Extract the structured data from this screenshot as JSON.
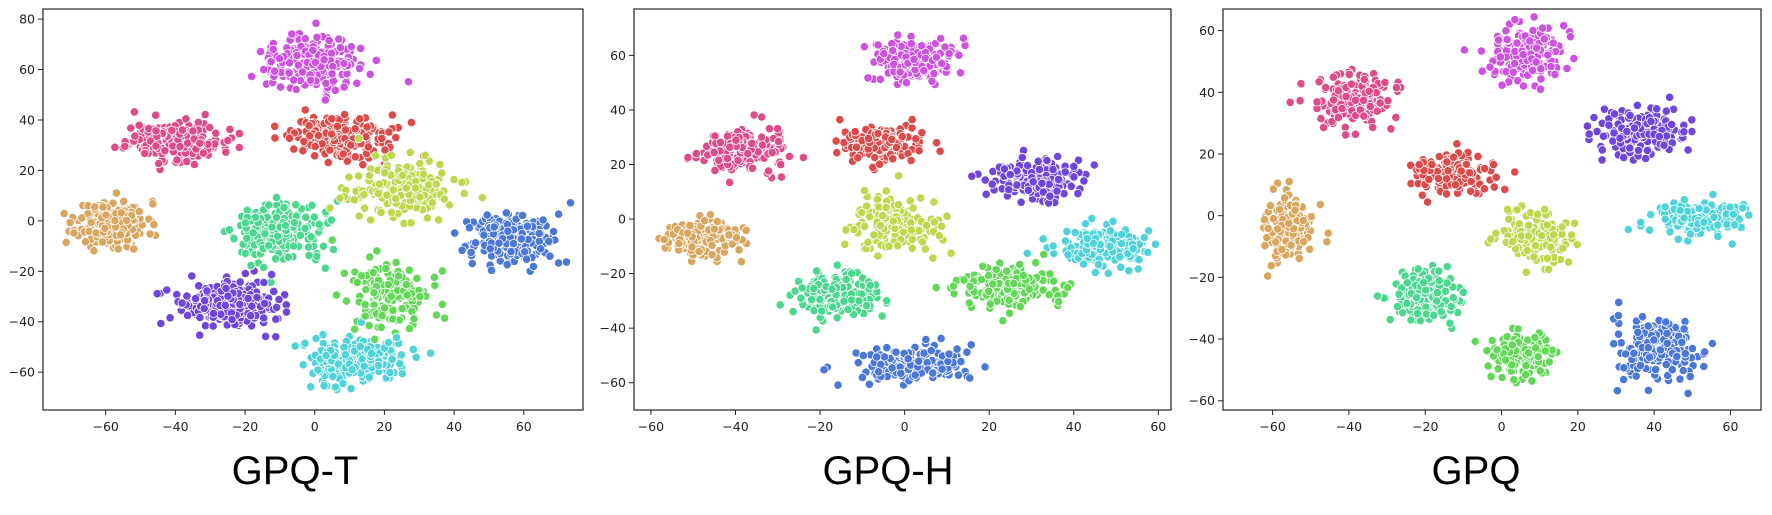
{
  "palette": {
    "orange": "#d8a65e",
    "pink": "#dd4b8b",
    "magenta": "#cc52df",
    "red": "#dc4a4a",
    "yellow": "#bcd84d",
    "mint": "#4cd78f",
    "green": "#63d858",
    "purple": "#7045dc",
    "cyan": "#4fd3d8",
    "blue": "#4b78d8"
  },
  "chart_data": [
    {
      "type": "scatter",
      "caption": "GPQ-T",
      "xlim": [
        -78,
        77
      ],
      "ylim": [
        -75,
        84
      ],
      "xticks": [
        -60,
        -40,
        -20,
        0,
        20,
        40,
        60
      ],
      "yticks": [
        -60,
        -40,
        -20,
        0,
        20,
        40,
        60,
        80
      ],
      "xticklabels": [
        "−60",
        "−40",
        "−20",
        "0",
        "20",
        "40",
        "60"
      ],
      "yticklabels": [
        "−60",
        "−40",
        "−20",
        "0",
        "20",
        "40",
        "60",
        "80"
      ],
      "grid": false,
      "clusters": [
        {
          "color": "orange",
          "center": [
            -58,
            -1
          ],
          "spread": [
            9,
            8
          ],
          "n": 260
        },
        {
          "color": "pink",
          "center": [
            -40,
            32
          ],
          "spread": [
            12,
            7
          ],
          "n": 240
        },
        {
          "color": "magenta",
          "center": [
            -1,
            63
          ],
          "spread": [
            11,
            9
          ],
          "n": 240
        },
        {
          "color": "red",
          "center": [
            8,
            33
          ],
          "spread": [
            14,
            8
          ],
          "n": 200
        },
        {
          "color": "yellow",
          "center": [
            25,
            12
          ],
          "spread": [
            14,
            10
          ],
          "n": 200
        },
        {
          "color": "mint",
          "center": [
            -10,
            -5
          ],
          "spread": [
            11,
            11
          ],
          "n": 220
        },
        {
          "color": "green",
          "center": [
            22,
            -30
          ],
          "spread": [
            10,
            12
          ],
          "n": 180
        },
        {
          "color": "purple",
          "center": [
            -25,
            -33
          ],
          "spread": [
            13,
            8
          ],
          "n": 260
        },
        {
          "color": "cyan",
          "center": [
            12,
            -55
          ],
          "spread": [
            12,
            8
          ],
          "n": 260
        },
        {
          "color": "blue",
          "center": [
            56,
            -7
          ],
          "spread": [
            11,
            9
          ],
          "n": 260
        }
      ]
    },
    {
      "type": "scatter",
      "caption": "GPQ-H",
      "xlim": [
        -64,
        63
      ],
      "ylim": [
        -70,
        77
      ],
      "xticks": [
        -60,
        -40,
        -20,
        0,
        20,
        40,
        60
      ],
      "yticks": [
        -60,
        -40,
        -20,
        0,
        20,
        40,
        60
      ],
      "xticklabels": [
        "−60",
        "−40",
        "−20",
        "0",
        "20",
        "40",
        "60"
      ],
      "yticklabels": [
        "−60",
        "−40",
        "−20",
        "0",
        "20",
        "40",
        "60"
      ],
      "grid": false,
      "clusters": [
        {
          "color": "orange",
          "center": [
            -49,
            -7
          ],
          "spread": [
            8,
            6
          ],
          "n": 180
        },
        {
          "color": "pink",
          "center": [
            -38,
            25
          ],
          "spread": [
            9,
            7
          ],
          "n": 200
        },
        {
          "color": "magenta",
          "center": [
            2,
            58
          ],
          "spread": [
            9,
            7
          ],
          "n": 200
        },
        {
          "color": "red",
          "center": [
            -5,
            28
          ],
          "spread": [
            9,
            6
          ],
          "n": 150
        },
        {
          "color": "yellow",
          "center": [
            -3,
            -2
          ],
          "spread": [
            9,
            8
          ],
          "n": 170
        },
        {
          "color": "mint",
          "center": [
            -16,
            -28
          ],
          "spread": [
            9,
            7
          ],
          "n": 170
        },
        {
          "color": "purple",
          "center": [
            31,
            14
          ],
          "spread": [
            10,
            7
          ],
          "n": 190
        },
        {
          "color": "green",
          "center": [
            25,
            -25
          ],
          "spread": [
            11,
            7
          ],
          "n": 180
        },
        {
          "color": "cyan",
          "center": [
            47,
            -10
          ],
          "spread": [
            10,
            7
          ],
          "n": 180
        },
        {
          "color": "blue",
          "center": [
            2,
            -53
          ],
          "spread": [
            12,
            6
          ],
          "n": 210
        }
      ]
    },
    {
      "type": "scatter",
      "caption": "GPQ",
      "xlim": [
        -73,
        68
      ],
      "ylim": [
        -63,
        67
      ],
      "xticks": [
        -60,
        -40,
        -20,
        0,
        20,
        40,
        60
      ],
      "yticks": [
        -60,
        -40,
        -20,
        0,
        20,
        40,
        60
      ],
      "xticklabels": [
        "−60",
        "−40",
        "−20",
        "0",
        "20",
        "40",
        "60"
      ],
      "yticklabels": [
        "−60",
        "−40",
        "−20",
        "0",
        "20",
        "40",
        "60"
      ],
      "grid": false,
      "clusters": [
        {
          "color": "orange",
          "center": [
            -56,
            -4
          ],
          "spread": [
            6,
            9
          ],
          "n": 170
        },
        {
          "color": "pink",
          "center": [
            -39,
            37
          ],
          "spread": [
            9,
            7
          ],
          "n": 190
        },
        {
          "color": "magenta",
          "center": [
            7,
            52
          ],
          "spread": [
            9,
            8
          ],
          "n": 190
        },
        {
          "color": "red",
          "center": [
            -13,
            14
          ],
          "spread": [
            9,
            6
          ],
          "n": 170
        },
        {
          "color": "yellow",
          "center": [
            9,
            -7
          ],
          "spread": [
            8,
            8
          ],
          "n": 160
        },
        {
          "color": "purple",
          "center": [
            36,
            27
          ],
          "spread": [
            10,
            7
          ],
          "n": 190
        },
        {
          "color": "cyan",
          "center": [
            52,
            -1
          ],
          "spread": [
            11,
            5
          ],
          "n": 170
        },
        {
          "color": "mint",
          "center": [
            -20,
            -26
          ],
          "spread": [
            8,
            7
          ],
          "n": 170
        },
        {
          "color": "green",
          "center": [
            5,
            -45
          ],
          "spread": [
            8,
            7
          ],
          "n": 150
        },
        {
          "color": "blue",
          "center": [
            41,
            -43
          ],
          "spread": [
            10,
            9
          ],
          "n": 190
        }
      ]
    }
  ]
}
